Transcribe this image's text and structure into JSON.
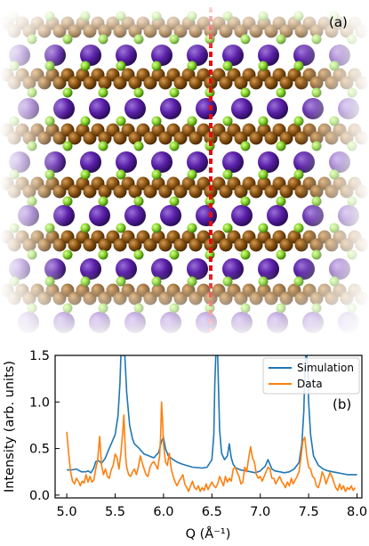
{
  "panel_a": {
    "label": "(a)",
    "colors": {
      "large_atom": "#5a1fa8",
      "medium_atom": "#8a5414",
      "small_atom": "#86d22a",
      "marker_line": "#e01010"
    }
  },
  "panel_b": {
    "label": "(b)"
  },
  "chart_data": {
    "type": "line",
    "xlabel": "Q (Å⁻¹)",
    "ylabel": "Intensity (arb. units)",
    "xlim": [
      4.88,
      8.05
    ],
    "ylim": [
      -0.03,
      1.5
    ],
    "xticks": [
      "5.0",
      "5.5",
      "6.0",
      "6.5",
      "7.0",
      "7.5",
      "8.0"
    ],
    "yticks": [
      "0.0",
      "0.5",
      "1.0",
      "1.5"
    ],
    "legend_position": "top-right",
    "series": [
      {
        "name": "Simulation",
        "color": "#1f77b4",
        "x": [
          5.0,
          5.05,
          5.1,
          5.15,
          5.2,
          5.22,
          5.25,
          5.28,
          5.3,
          5.33,
          5.36,
          5.4,
          5.43,
          5.46,
          5.5,
          5.53,
          5.55,
          5.56,
          5.57,
          5.58,
          5.59,
          5.6,
          5.62,
          5.65,
          5.68,
          5.7,
          5.75,
          5.8,
          5.85,
          5.9,
          5.95,
          5.98,
          6.0,
          6.02,
          6.05,
          6.1,
          6.15,
          6.2,
          6.3,
          6.4,
          6.45,
          6.5,
          6.52,
          6.53,
          6.54,
          6.55,
          6.56,
          6.57,
          6.58,
          6.6,
          6.63,
          6.66,
          6.68,
          6.7,
          6.72,
          6.75,
          6.8,
          6.85,
          6.9,
          6.95,
          7.0,
          7.05,
          7.08,
          7.1,
          7.12,
          7.15,
          7.2,
          7.25,
          7.3,
          7.35,
          7.4,
          7.43,
          7.45,
          7.46,
          7.47,
          7.48,
          7.49,
          7.5,
          7.52,
          7.55,
          7.6,
          7.65,
          7.7,
          7.8,
          7.9,
          8.0
        ],
        "y": [
          0.27,
          0.27,
          0.28,
          0.25,
          0.25,
          0.26,
          0.24,
          0.29,
          0.36,
          0.37,
          0.34,
          0.4,
          0.48,
          0.55,
          0.65,
          0.85,
          1.2,
          1.5,
          1.5,
          1.5,
          1.5,
          1.5,
          1.1,
          0.75,
          0.6,
          0.55,
          0.5,
          0.44,
          0.42,
          0.4,
          0.46,
          0.58,
          0.62,
          0.5,
          0.42,
          0.38,
          0.35,
          0.33,
          0.3,
          0.29,
          0.3,
          0.38,
          0.65,
          1.2,
          1.5,
          1.5,
          1.5,
          1.1,
          0.7,
          0.45,
          0.38,
          0.42,
          0.55,
          0.4,
          0.33,
          0.29,
          0.27,
          0.26,
          0.25,
          0.24,
          0.26,
          0.31,
          0.38,
          0.33,
          0.28,
          0.26,
          0.25,
          0.24,
          0.25,
          0.28,
          0.35,
          0.55,
          0.9,
          1.3,
          1.5,
          1.5,
          1.4,
          1.0,
          0.65,
          0.42,
          0.32,
          0.28,
          0.26,
          0.24,
          0.22,
          0.22
        ]
      },
      {
        "name": "Data",
        "color": "#ff7f0e",
        "x": [
          5.0,
          5.02,
          5.04,
          5.06,
          5.08,
          5.1,
          5.12,
          5.14,
          5.16,
          5.18,
          5.2,
          5.22,
          5.24,
          5.26,
          5.28,
          5.3,
          5.32,
          5.34,
          5.36,
          5.38,
          5.4,
          5.42,
          5.44,
          5.46,
          5.48,
          5.5,
          5.52,
          5.54,
          5.56,
          5.58,
          5.59,
          5.6,
          5.61,
          5.62,
          5.64,
          5.66,
          5.68,
          5.7,
          5.72,
          5.74,
          5.76,
          5.78,
          5.8,
          5.82,
          5.84,
          5.86,
          5.88,
          5.9,
          5.92,
          5.94,
          5.96,
          5.97,
          5.98,
          5.99,
          6.0,
          6.02,
          6.04,
          6.06,
          6.08,
          6.1,
          6.12,
          6.14,
          6.16,
          6.18,
          6.2,
          6.22,
          6.24,
          6.26,
          6.28,
          6.3,
          6.32,
          6.34,
          6.36,
          6.38,
          6.4,
          6.42,
          6.44,
          6.46,
          6.48,
          6.5,
          6.52,
          6.54,
          6.56,
          6.58,
          6.6,
          6.62,
          6.64,
          6.66,
          6.68,
          6.7,
          6.72,
          6.74,
          6.76,
          6.78,
          6.8,
          6.82,
          6.84,
          6.86,
          6.88,
          6.9,
          6.92,
          6.94,
          6.96,
          6.98,
          7.0,
          7.02,
          7.04,
          7.06,
          7.08,
          7.1,
          7.12,
          7.14,
          7.16,
          7.18,
          7.2,
          7.22,
          7.24,
          7.26,
          7.28,
          7.3,
          7.32,
          7.34,
          7.36,
          7.38,
          7.4,
          7.42,
          7.44,
          7.46,
          7.48,
          7.5,
          7.52,
          7.54,
          7.56,
          7.58,
          7.6,
          7.62,
          7.64,
          7.66,
          7.68,
          7.7,
          7.72,
          7.74,
          7.76,
          7.78,
          7.8,
          7.82,
          7.84,
          7.86,
          7.88,
          7.9,
          7.92,
          7.94,
          7.96,
          7.98
        ],
        "y": [
          0.68,
          0.45,
          0.25,
          0.15,
          0.12,
          0.18,
          0.15,
          0.1,
          0.15,
          0.13,
          0.22,
          0.14,
          0.2,
          0.14,
          0.16,
          0.28,
          0.38,
          0.63,
          0.32,
          0.22,
          0.28,
          0.2,
          0.18,
          0.27,
          0.32,
          0.44,
          0.4,
          0.28,
          0.45,
          0.7,
          0.86,
          0.6,
          0.4,
          0.3,
          0.22,
          0.2,
          0.25,
          0.28,
          0.22,
          0.3,
          0.42,
          0.35,
          0.28,
          0.22,
          0.2,
          0.3,
          0.34,
          0.36,
          0.32,
          0.28,
          0.42,
          0.62,
          1.0,
          0.8,
          0.55,
          0.36,
          0.32,
          0.45,
          0.28,
          0.2,
          0.14,
          0.1,
          0.15,
          0.18,
          0.22,
          0.12,
          0.08,
          0.04,
          0.1,
          0.15,
          0.08,
          0.06,
          0.1,
          0.04,
          0.08,
          0.05,
          0.12,
          0.06,
          0.1,
          0.14,
          0.1,
          0.08,
          0.12,
          0.2,
          0.15,
          0.1,
          0.2,
          0.14,
          0.18,
          0.15,
          0.28,
          0.3,
          0.25,
          0.2,
          0.12,
          0.14,
          0.3,
          0.25,
          0.4,
          0.52,
          0.4,
          0.35,
          0.22,
          0.18,
          0.2,
          0.15,
          0.2,
          0.25,
          0.3,
          0.28,
          0.18,
          0.18,
          0.12,
          0.16,
          0.2,
          0.15,
          0.12,
          0.08,
          0.14,
          0.1,
          0.18,
          0.12,
          0.16,
          0.2,
          0.25,
          0.4,
          0.58,
          0.62,
          0.42,
          0.3,
          0.28,
          0.2,
          0.18,
          0.1,
          0.08,
          0.15,
          0.25,
          0.2,
          0.12,
          0.18,
          0.24,
          0.2,
          0.14,
          0.08,
          0.05,
          0.12,
          0.06,
          0.1,
          0.04,
          0.08,
          0.06,
          0.1,
          0.05,
          0.08
        ]
      }
    ]
  }
}
